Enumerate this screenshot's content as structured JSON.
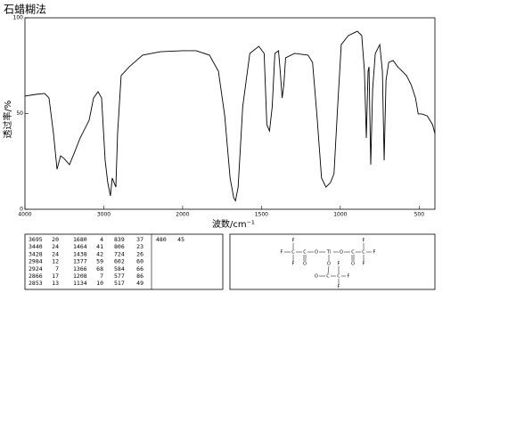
{
  "chart_data": {
    "type": "line",
    "title": "石蜡糊法",
    "xlabel": "波数/cm⁻¹",
    "ylabel": "透过率/%",
    "xlim": [
      4000,
      400
    ],
    "xticks": [
      4000,
      3000,
      2000,
      1500,
      1000,
      500
    ],
    "xscale_change_at": 2000,
    "xscale_ratio": 2,
    "ylim": [
      0,
      100
    ],
    "yticks": [
      0,
      50,
      100
    ],
    "grid": false,
    "color": "#000000",
    "x": [
      4000,
      3864,
      3750,
      3695,
      3638,
      3593,
      3548,
      3503,
      3435,
      3367,
      3300,
      3186,
      3130,
      3073,
      3028,
      2983,
      2950,
      2916,
      2893,
      2870,
      2847,
      2825,
      2780,
      2678,
      2508,
      2282,
      2000,
      1915,
      1830,
      1773,
      1733,
      1699,
      1676,
      1665,
      1648,
      1619,
      1574,
      1517,
      1483,
      1466,
      1449,
      1432,
      1415,
      1392,
      1381,
      1369,
      1358,
      1347,
      1290,
      1205,
      1176,
      1148,
      1119,
      1091,
      1062,
      1040,
      1017,
      994,
      949,
      892,
      864,
      847,
      835,
      824,
      818,
      807,
      795,
      778,
      750,
      733,
      722,
      710,
      693,
      665,
      636,
      608,
      580,
      551,
      523,
      506,
      483,
      449,
      415,
      400
    ],
    "values": [
      59.1,
      60.0,
      60.5,
      58.1,
      39.5,
      20.9,
      27.9,
      26.5,
      23.3,
      30.2,
      37.2,
      46.5,
      58.1,
      61.4,
      58.1,
      25.6,
      14.0,
      7.0,
      16.3,
      14.0,
      11.6,
      39.5,
      69.8,
      74.4,
      80.5,
      82.3,
      82.8,
      82.8,
      80.5,
      72.1,
      48.8,
      16.3,
      6.0,
      4.4,
      11.6,
      53.5,
      81.4,
      85.1,
      81.4,
      44.2,
      40.9,
      53.5,
      81.4,
      82.8,
      72.1,
      58.1,
      65.1,
      79.1,
      81.4,
      80.5,
      76.7,
      48.8,
      16.3,
      11.6,
      14.0,
      18.6,
      53.5,
      86.0,
      90.7,
      93.0,
      90.7,
      72.1,
      37.2,
      72.1,
      74.4,
      23.3,
      62.8,
      81.4,
      86.0,
      72.1,
      25.6,
      67.4,
      76.7,
      77.7,
      74.4,
      72.1,
      69.8,
      65.1,
      58.1,
      49.8,
      49.8,
      48.8,
      44.2,
      39.5
    ]
  },
  "peak_table": [
    [
      [
        3695,
        20
      ],
      [
        3440,
        24
      ],
      [
        3428,
        24
      ],
      [
        2984,
        12
      ],
      [
        2924,
        7
      ],
      [
        2866,
        17
      ],
      [
        2853,
        13
      ]
    ],
    [
      [
        1680,
        4
      ],
      [
        1464,
        41
      ],
      [
        1438,
        42
      ],
      [
        1377,
        59
      ],
      [
        1366,
        68
      ],
      [
        1208,
        7
      ],
      [
        1134,
        10
      ]
    ],
    [
      [
        839,
        37
      ],
      [
        806,
        23
      ],
      [
        724,
        26
      ],
      [
        602,
        60
      ],
      [
        584,
        66
      ],
      [
        577,
        86
      ],
      [
        517,
        49
      ]
    ],
    [
      [
        480,
        45
      ]
    ]
  ],
  "structure": {
    "atoms": [
      "F",
      "C",
      "C",
      "O",
      "Tl",
      "O",
      "C",
      "C",
      "F",
      "F",
      "F",
      "F",
      "O",
      "O",
      "F",
      "O",
      "F",
      "O",
      "C",
      "C",
      "F",
      "F"
    ]
  }
}
